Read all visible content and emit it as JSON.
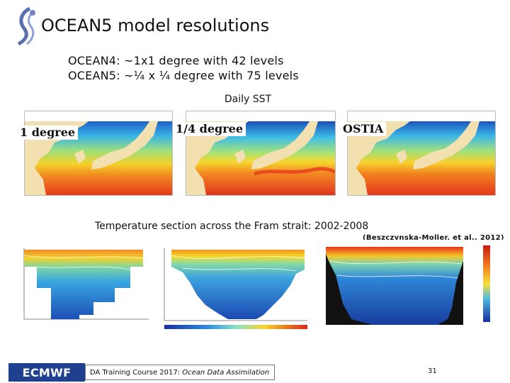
{
  "slide": {
    "title": "OCEAN5 model resolutions",
    "spec_1": "OCEAN4:  ~1x1 degree with 42 levels",
    "spec_2": "OCEAN5: ~¼ x ¼ degree with 75 levels"
  },
  "sst": {
    "caption": "Daily SST",
    "maps": [
      {
        "label": "1 degree"
      },
      {
        "label": "1/4 degree"
      },
      {
        "label": "OSTIA"
      }
    ]
  },
  "fram": {
    "caption": "Temperature section across the Fram strait: 2002-2008",
    "reference": "(Beszczynska-Moller, et al., 2012)"
  },
  "footer": {
    "logo_text": "ECMWF",
    "course_prefix": "DA Training Course 2017: ",
    "course_italic": "Ocean Data Assimilation",
    "page_number": "31"
  },
  "colors": {
    "ocean_warm": "#e63a1e",
    "ocean_mid": "#f5d02a",
    "ocean_cool": "#36b2e2",
    "land": "#f2e0b0",
    "logo_blue": "#1f3f8f"
  }
}
